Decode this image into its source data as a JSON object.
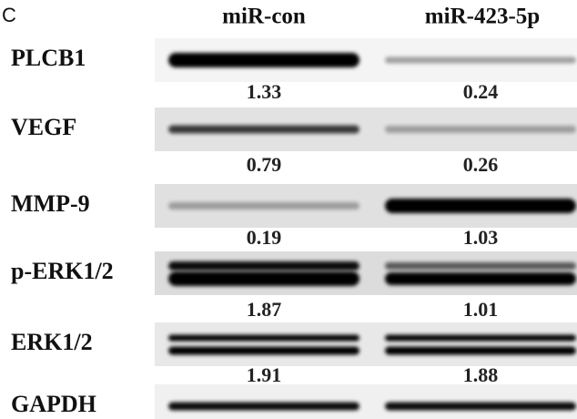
{
  "panel_label": "C",
  "columns": [
    "miR-con",
    "miR-423-5p"
  ],
  "rows": [
    {
      "protein": "PLCB1",
      "values": [
        "1.33",
        "0.24"
      ]
    },
    {
      "protein": "VEGF",
      "values": [
        "0.79",
        "0.26"
      ]
    },
    {
      "protein": "MMP-9",
      "values": [
        "0.19",
        "1.03"
      ]
    },
    {
      "protein": "p-ERK1/2",
      "values": [
        "1.87",
        "1.01"
      ]
    },
    {
      "protein": "ERK1/2",
      "values": [
        "1.91",
        "1.88"
      ]
    },
    {
      "protein": "GAPDH"
    }
  ]
}
